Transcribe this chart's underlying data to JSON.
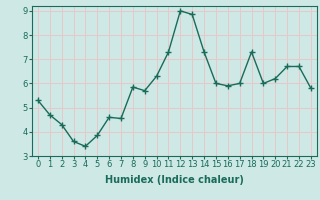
{
  "x": [
    0,
    1,
    2,
    3,
    4,
    5,
    6,
    7,
    8,
    9,
    10,
    11,
    12,
    13,
    14,
    15,
    16,
    17,
    18,
    19,
    20,
    21,
    22,
    23
  ],
  "y": [
    5.3,
    4.7,
    4.3,
    3.6,
    3.4,
    3.85,
    4.6,
    4.55,
    5.85,
    5.7,
    6.3,
    7.3,
    9.0,
    8.85,
    7.3,
    6.0,
    5.9,
    6.0,
    7.3,
    6.0,
    6.2,
    6.7,
    6.7,
    5.8
  ],
  "line_color": "#1a6b5a",
  "marker": "+",
  "marker_size": 4,
  "marker_linewidth": 1.0,
  "bg_color": "#cde8e5",
  "grid_color": "#e8c8c8",
  "xlabel": "Humidex (Indice chaleur)",
  "xlim": [
    -0.5,
    23.5
  ],
  "ylim": [
    3,
    9.2
  ],
  "yticks": [
    3,
    4,
    5,
    6,
    7,
    8,
    9
  ],
  "xticks": [
    0,
    1,
    2,
    3,
    4,
    5,
    6,
    7,
    8,
    9,
    10,
    11,
    12,
    13,
    14,
    15,
    16,
    17,
    18,
    19,
    20,
    21,
    22,
    23
  ],
  "xlabel_fontsize": 7.0,
  "tick_fontsize": 6.0,
  "linewidth": 1.0
}
